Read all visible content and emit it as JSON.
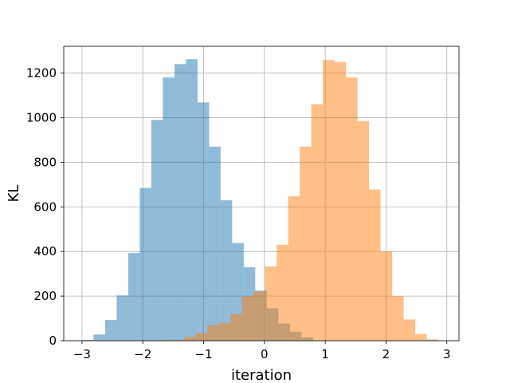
{
  "chart_data": {
    "type": "bar",
    "subtype": "overlapping-histogram",
    "title": "",
    "xlabel": "iteration",
    "ylabel": "KL",
    "xlim": [
      -3.3,
      3.2
    ],
    "ylim": [
      0,
      1320
    ],
    "xticks": [
      -3,
      -2,
      -1,
      0,
      1,
      2,
      3
    ],
    "xtick_labels": [
      "−3",
      "−2",
      "−1",
      "0",
      "1",
      "2",
      "3"
    ],
    "yticks": [
      0,
      200,
      400,
      600,
      800,
      1000,
      1200
    ],
    "ytick_labels": [
      "0",
      "200",
      "400",
      "600",
      "800",
      "1000",
      "1200"
    ],
    "grid": true,
    "legend": "none",
    "series": [
      {
        "color": "#1f77b4",
        "alpha": 0.5,
        "bins": [
          {
            "x0": -3.0,
            "x1": -2.81,
            "count": 3
          },
          {
            "x0": -2.81,
            "x1": -2.62,
            "count": 28
          },
          {
            "x0": -2.62,
            "x1": -2.43,
            "count": 93
          },
          {
            "x0": -2.43,
            "x1": -2.24,
            "count": 203
          },
          {
            "x0": -2.24,
            "x1": -2.05,
            "count": 393
          },
          {
            "x0": -2.05,
            "x1": -1.86,
            "count": 685
          },
          {
            "x0": -1.86,
            "x1": -1.67,
            "count": 990
          },
          {
            "x0": -1.67,
            "x1": -1.48,
            "count": 1180
          },
          {
            "x0": -1.48,
            "x1": -1.29,
            "count": 1240
          },
          {
            "x0": -1.29,
            "x1": -1.1,
            "count": 1262
          },
          {
            "x0": -1.1,
            "x1": -0.91,
            "count": 1068
          },
          {
            "x0": -0.91,
            "x1": -0.72,
            "count": 870
          },
          {
            "x0": -0.72,
            "x1": -0.53,
            "count": 630
          },
          {
            "x0": -0.53,
            "x1": -0.34,
            "count": 438
          },
          {
            "x0": -0.34,
            "x1": -0.15,
            "count": 330
          },
          {
            "x0": -0.15,
            "x1": 0.04,
            "count": 225
          },
          {
            "x0": 0.04,
            "x1": 0.23,
            "count": 145
          },
          {
            "x0": 0.23,
            "x1": 0.42,
            "count": 77
          },
          {
            "x0": 0.42,
            "x1": 0.61,
            "count": 40
          },
          {
            "x0": 0.61,
            "x1": 0.8,
            "count": 15
          }
        ]
      },
      {
        "color": "#ff7f0e",
        "alpha": 0.5,
        "bins": [
          {
            "x0": -1.7,
            "x1": -1.51,
            "count": 1
          },
          {
            "x0": -1.51,
            "x1": -1.32,
            "count": 3
          },
          {
            "x0": -1.32,
            "x1": -1.13,
            "count": 17
          },
          {
            "x0": -1.13,
            "x1": -0.94,
            "count": 35
          },
          {
            "x0": -0.94,
            "x1": -0.75,
            "count": 70
          },
          {
            "x0": -0.75,
            "x1": -0.56,
            "count": 80
          },
          {
            "x0": -0.56,
            "x1": -0.37,
            "count": 120
          },
          {
            "x0": -0.37,
            "x1": -0.18,
            "count": 200
          },
          {
            "x0": -0.18,
            "x1": 0.01,
            "count": 220
          },
          {
            "x0": 0.01,
            "x1": 0.2,
            "count": 333
          },
          {
            "x0": 0.2,
            "x1": 0.39,
            "count": 430
          },
          {
            "x0": 0.39,
            "x1": 0.58,
            "count": 647
          },
          {
            "x0": 0.58,
            "x1": 0.77,
            "count": 870
          },
          {
            "x0": 0.77,
            "x1": 0.96,
            "count": 1060
          },
          {
            "x0": 0.96,
            "x1": 1.15,
            "count": 1258
          },
          {
            "x0": 1.15,
            "x1": 1.34,
            "count": 1250
          },
          {
            "x0": 1.34,
            "x1": 1.53,
            "count": 1180
          },
          {
            "x0": 1.53,
            "x1": 1.72,
            "count": 985
          },
          {
            "x0": 1.72,
            "x1": 1.91,
            "count": 678
          },
          {
            "x0": 1.91,
            "x1": 2.1,
            "count": 400
          },
          {
            "x0": 2.1,
            "x1": 2.29,
            "count": 200
          },
          {
            "x0": 2.29,
            "x1": 2.48,
            "count": 95
          },
          {
            "x0": 2.48,
            "x1": 2.67,
            "count": 30
          },
          {
            "x0": 2.67,
            "x1": 2.86,
            "count": 6
          }
        ]
      }
    ]
  }
}
